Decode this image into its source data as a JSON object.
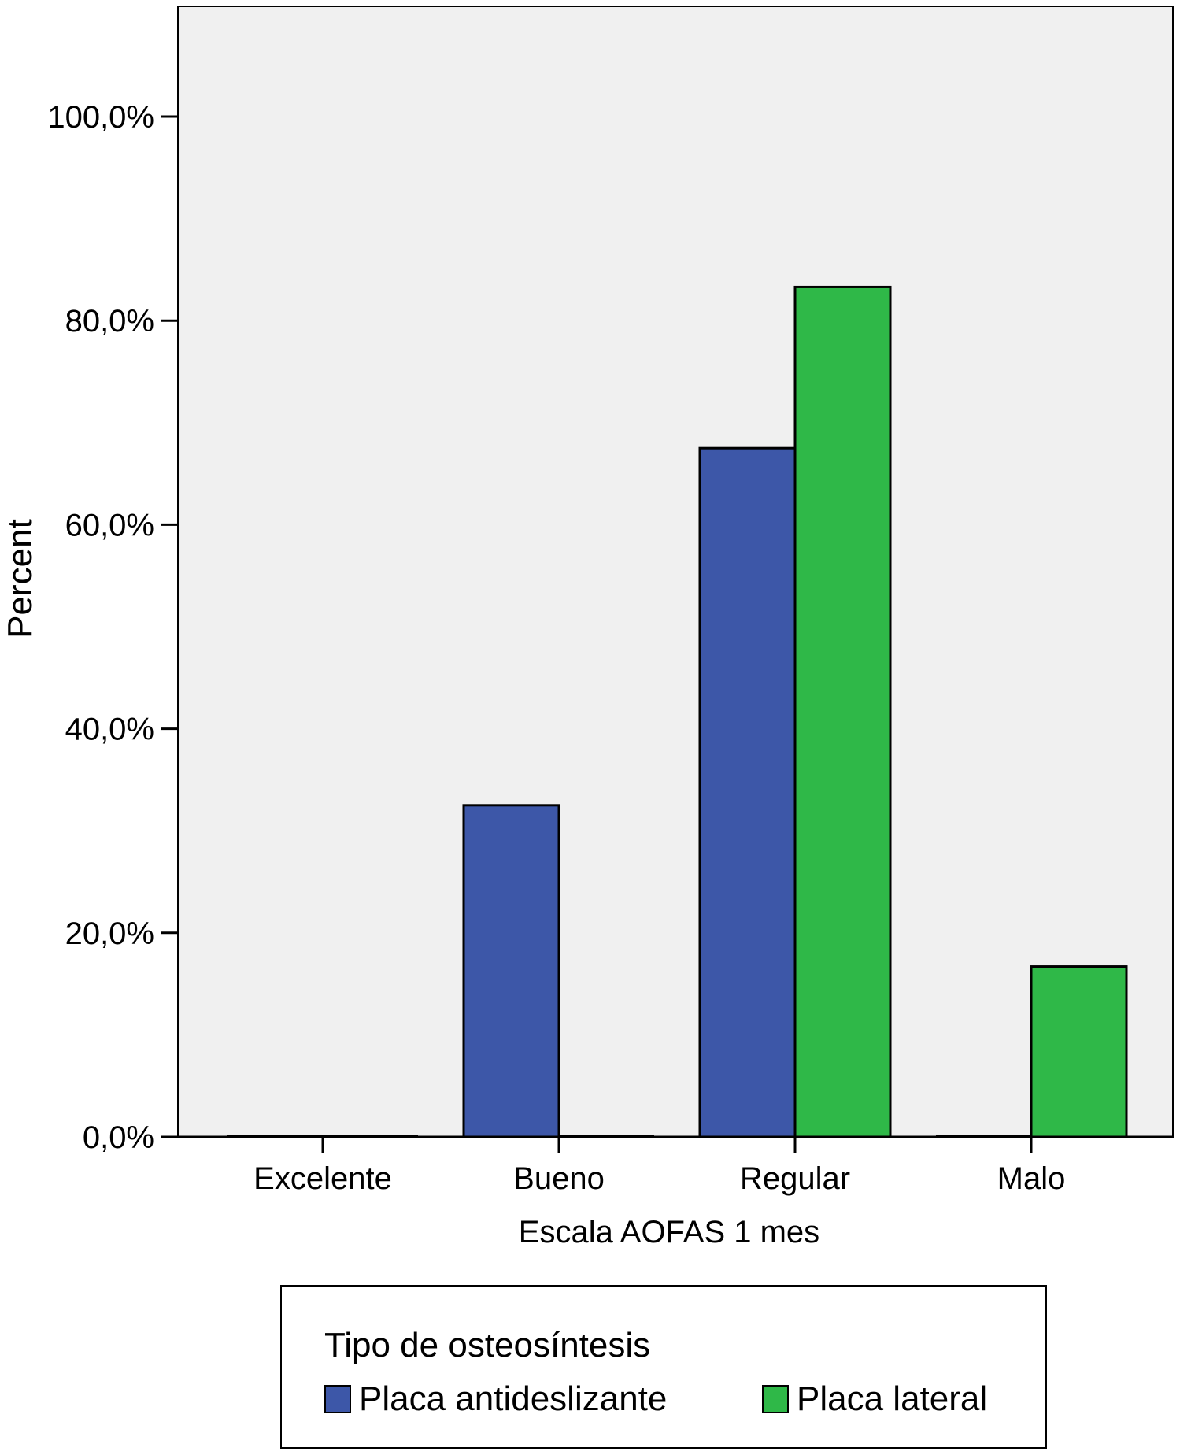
{
  "chart_data": {
    "type": "bar",
    "xlabel": "Escala AOFAS 1 mes",
    "ylabel": "Percent",
    "categories": [
      "Excelente",
      "Bueno",
      "Regular",
      "Malo"
    ],
    "series": [
      {
        "name": "Placa antideslizante",
        "color": "#3d57a8",
        "values": [
          0,
          32.5,
          67.5,
          0
        ]
      },
      {
        "name": "Placa lateral",
        "color": "#2fb848",
        "values": [
          0,
          0,
          83.3,
          16.7
        ]
      }
    ],
    "ylim": [
      0,
      110
    ],
    "yticks": [
      0,
      20,
      40,
      60,
      80,
      100
    ],
    "ytick_labels": [
      "0,0%",
      "20,0%",
      "40,0%",
      "60,0%",
      "80,0%",
      "100,0%"
    ],
    "plot_background": "#f0f0f0",
    "grid": false,
    "legend": {
      "title": "Tipo de osteosíntesis",
      "placement": "bottom"
    }
  }
}
